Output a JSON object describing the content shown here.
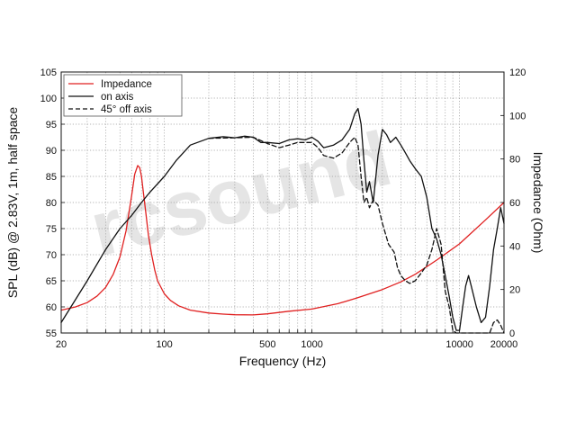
{
  "chart_data": {
    "type": "line",
    "xlabel": "Frequency (Hz)",
    "ylabel": "SPL (dB) @ 2.83V, 1m, half space",
    "y2label": "Impedance (Ohm)",
    "x_scale": "log",
    "xlim": [
      20,
      20000
    ],
    "ylim": [
      55,
      105
    ],
    "y2lim": [
      0,
      120
    ],
    "grid": true,
    "legend_position": "top-left",
    "watermark": "rcsound",
    "x_tick_labels": [
      "20",
      "100",
      "500",
      "1000",
      "10000",
      "20000"
    ],
    "y_tick_labels": [
      "55",
      "60",
      "65",
      "70",
      "75",
      "80",
      "85",
      "90",
      "95",
      "100",
      "105"
    ],
    "y2_tick_labels": [
      "0",
      "20",
      "40",
      "60",
      "80",
      "100",
      "120"
    ],
    "series": [
      {
        "name": "Impedance",
        "axis": "right",
        "color": "#e02020",
        "dash": "solid",
        "x": [
          20,
          25,
          30,
          35,
          40,
          45,
          50,
          55,
          60,
          63,
          66,
          68,
          70,
          72,
          75,
          78,
          82,
          86,
          90,
          100,
          110,
          125,
          150,
          200,
          250,
          300,
          400,
          500,
          700,
          1000,
          1500,
          2000,
          3000,
          4000,
          5000,
          7000,
          10000,
          15000,
          20000
        ],
        "values": [
          10.5,
          12,
          14,
          17,
          21,
          27,
          35,
          47,
          63,
          73,
          77,
          76,
          72,
          65,
          55,
          45,
          36,
          29,
          24,
          18,
          15,
          12.5,
          10.5,
          9.2,
          8.7,
          8.4,
          8.3,
          8.8,
          10,
          11,
          13.5,
          16,
          20,
          23.5,
          27,
          33.5,
          41,
          52,
          60
        ]
      },
      {
        "name": "on axis",
        "axis": "left",
        "color": "#111111",
        "dash": "solid",
        "x": [
          20,
          30,
          40,
          50,
          60,
          70,
          80,
          100,
          120,
          150,
          200,
          250,
          300,
          350,
          400,
          450,
          500,
          600,
          700,
          800,
          900,
          1000,
          1100,
          1200,
          1400,
          1600,
          1800,
          1950,
          2050,
          2150,
          2250,
          2350,
          2450,
          2600,
          2800,
          3000,
          3200,
          3400,
          3700,
          4000,
          4300,
          4600,
          5000,
          5500,
          6000,
          6500,
          7000,
          7500,
          8000,
          8500,
          9000,
          9500,
          10000,
          10500,
          11000,
          11500,
          12000,
          13000,
          14000,
          15000,
          16000,
          17000,
          18000,
          19000,
          20000
        ],
        "values": [
          57,
          65,
          71,
          75,
          77.5,
          80,
          82,
          85,
          88,
          91,
          92.3,
          92.6,
          92.4,
          92.7,
          92.5,
          91.5,
          91.5,
          91.3,
          92,
          92.2,
          92,
          92.5,
          91.7,
          90.5,
          91,
          92,
          94,
          97,
          98,
          95,
          88,
          82,
          84,
          80,
          89,
          94,
          93,
          91.5,
          92.5,
          91,
          89.5,
          88,
          86.5,
          85,
          81,
          75,
          73,
          70,
          66,
          62,
          58,
          55.5,
          55.5,
          60,
          64,
          66,
          64,
          60,
          57,
          58,
          64,
          71,
          75,
          79,
          76
        ]
      },
      {
        "name": "45° off axis",
        "axis": "left",
        "color": "#111111",
        "dash": "dashed",
        "x": [
          200,
          300,
          400,
          500,
          600,
          700,
          800,
          900,
          1000,
          1100,
          1200,
          1400,
          1600,
          1800,
          1950,
          2050,
          2150,
          2250,
          2350,
          2450,
          2600,
          2800,
          3000,
          3300,
          3600,
          3800,
          4000,
          4300,
          4600,
          5000,
          5500,
          6000,
          6500,
          7000,
          7500,
          8000,
          8500,
          9000,
          9500,
          10000,
          10500,
          11000,
          16000,
          17000,
          18000,
          19000,
          20000
        ],
        "values": [
          92.3,
          92.4,
          92.5,
          91.3,
          90.5,
          91,
          91.5,
          91.5,
          91.5,
          90.5,
          89,
          88.5,
          89.5,
          91.5,
          92.5,
          91,
          85,
          80,
          81,
          79,
          80.5,
          79.5,
          76,
          72,
          70.5,
          67.5,
          66,
          65,
          64.5,
          65,
          66.5,
          68,
          71,
          75,
          72,
          63,
          60,
          55.5,
          55,
          55,
          55,
          55,
          55,
          57,
          57.5,
          56.5,
          55
        ]
      }
    ]
  }
}
